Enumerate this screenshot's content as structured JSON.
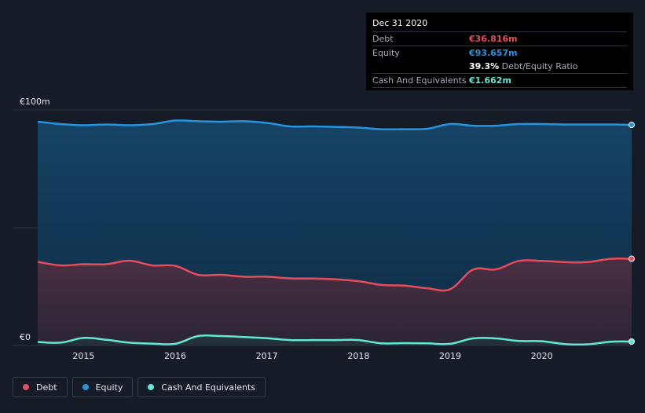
{
  "chart_data": {
    "type": "area",
    "currency": "€",
    "y_labels": {
      "top": "€100m",
      "bottom": "€0"
    },
    "ylim": [
      0,
      100
    ],
    "xlim": [
      2014.5,
      2020.98
    ],
    "x_ticks": [
      "2015",
      "2016",
      "2017",
      "2018",
      "2019",
      "2020"
    ],
    "x_tick_values": [
      2015,
      2016,
      2017,
      2018,
      2019,
      2020
    ],
    "grid": true,
    "legend_position": "bottom-left",
    "series": [
      {
        "name": "Equity",
        "color": "#2394df",
        "x": [
          2014.5,
          2014.75,
          2015.0,
          2015.25,
          2015.5,
          2015.75,
          2016.0,
          2016.25,
          2016.5,
          2016.75,
          2017.0,
          2017.25,
          2017.5,
          2017.75,
          2018.0,
          2018.25,
          2018.5,
          2018.75,
          2019.0,
          2019.25,
          2019.5,
          2019.75,
          2020.0,
          2020.25,
          2020.5,
          2020.75,
          2020.98
        ],
        "values": [
          95,
          94,
          93.5,
          93.8,
          93.5,
          94,
          95.5,
          95.2,
          95,
          95.2,
          94.5,
          93,
          93,
          92.8,
          92.5,
          91.8,
          91.8,
          92,
          94,
          93.3,
          93.3,
          94,
          94,
          93.8,
          93.8,
          93.8,
          93.657
        ]
      },
      {
        "name": "Debt",
        "color": "#e64c5c",
        "x": [
          2014.5,
          2014.75,
          2015.0,
          2015.25,
          2015.5,
          2015.75,
          2016.0,
          2016.25,
          2016.5,
          2016.75,
          2017.0,
          2017.25,
          2017.5,
          2017.75,
          2018.0,
          2018.25,
          2018.5,
          2018.75,
          2019.0,
          2019.25,
          2019.5,
          2019.75,
          2020.0,
          2020.25,
          2020.5,
          2020.75,
          2020.98
        ],
        "values": [
          35.5,
          34,
          34.5,
          34.5,
          36,
          34,
          33.8,
          30,
          30,
          29.2,
          29.2,
          28.5,
          28.4,
          28.1,
          27.3,
          25.7,
          25.4,
          24.3,
          23.9,
          32.2,
          32.3,
          35.9,
          35.9,
          35.4,
          35.4,
          36.8,
          36.816
        ]
      },
      {
        "name": "Cash And Equivalents",
        "color": "#60e8d4",
        "x": [
          2014.5,
          2014.75,
          2015.0,
          2015.25,
          2015.5,
          2015.75,
          2016.0,
          2016.25,
          2016.5,
          2016.75,
          2017.0,
          2017.25,
          2017.5,
          2017.75,
          2018.0,
          2018.25,
          2018.5,
          2018.75,
          2019.0,
          2019.25,
          2019.5,
          2019.75,
          2020.0,
          2020.25,
          2020.5,
          2020.75,
          2020.98
        ],
        "values": [
          1.5,
          1.2,
          3.2,
          2.4,
          1.2,
          0.8,
          0.7,
          4.0,
          4.0,
          3.6,
          3.1,
          2.3,
          2.3,
          2.3,
          2.3,
          0.9,
          1.0,
          0.9,
          0.7,
          3.0,
          3.0,
          1.9,
          1.8,
          0.6,
          0.5,
          1.6,
          1.662
        ]
      }
    ]
  },
  "tooltip": {
    "date": "Dec 31 2020",
    "debt_label": "Debt",
    "debt_value": "€36.816m",
    "equity_label": "Equity",
    "equity_value": "€93.657m",
    "ratio_value": "39.3%",
    "ratio_label": "Debt/Equity Ratio",
    "cash_label": "Cash And Equivalents",
    "cash_value": "€1.662m"
  },
  "legend": {
    "items": [
      {
        "label": "Debt",
        "color": "#e64c5c"
      },
      {
        "label": "Equity",
        "color": "#2394df"
      },
      {
        "label": "Cash And Equivalents",
        "color": "#60e8d4"
      }
    ]
  }
}
